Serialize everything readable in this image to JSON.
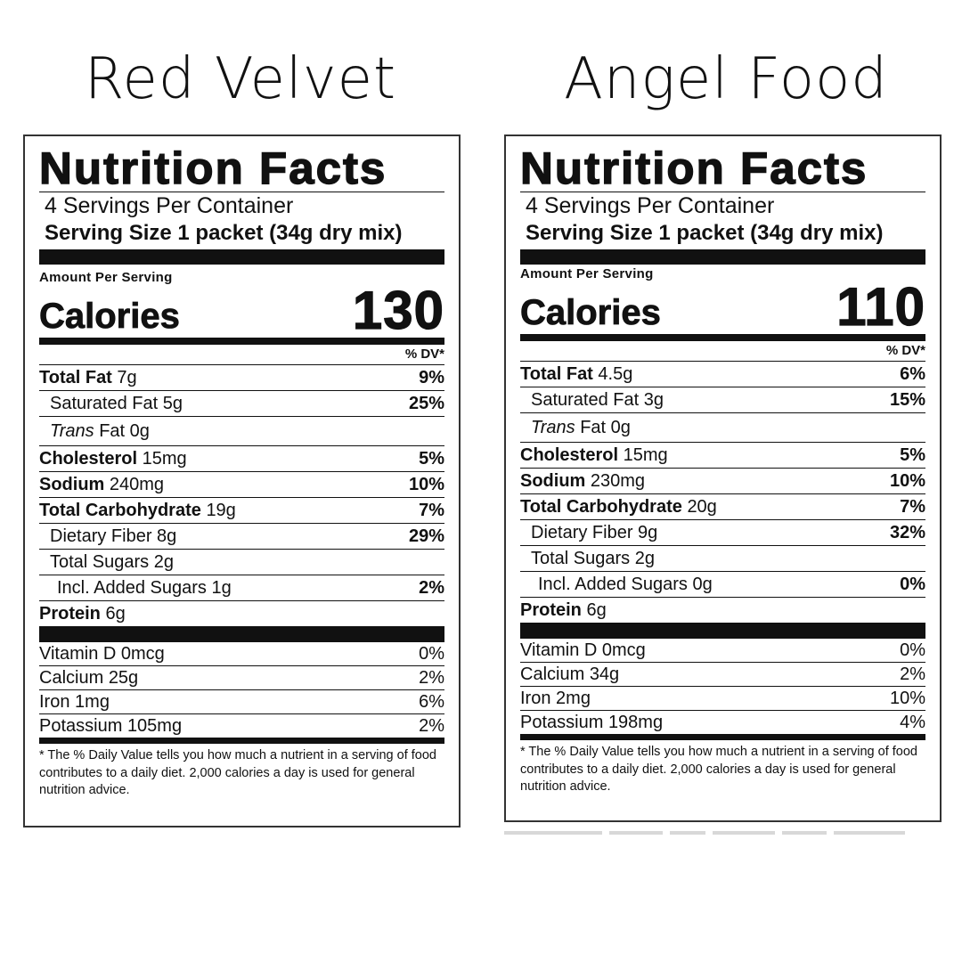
{
  "titles": {
    "left": "Red Velvet",
    "right": "Angel Food"
  },
  "labels": {
    "nf_title": "Nutrition Facts",
    "amount_per_serving": "Amount Per Serving",
    "calories": "Calories",
    "dv": "% DV*",
    "total_fat": "Total Fat",
    "saturated_fat": "Saturated Fat",
    "trans": "Trans",
    "fat": "Fat",
    "cholesterol": "Cholesterol",
    "sodium": "Sodium",
    "total_carb": "Total Carbohydrate",
    "dietary_fiber": "Dietary Fiber",
    "total_sugars": "Total Sugars",
    "added_sugars": "Incl. Added Sugars",
    "protein": "Protein",
    "vitamin_d": "Vitamin D",
    "calcium": "Calcium",
    "iron": "Iron",
    "potassium": "Potassium",
    "footnote": "* The % Daily Value tells you how much a nutrient in a serving of food contributes to a daily diet. 2,000 calories a day is used for general nutrition advice."
  },
  "red_velvet": {
    "servings": "4 Servings Per Container",
    "serving_size": "Serving Size 1 packet (34g dry mix)",
    "calories": "130",
    "total_fat": {
      "amount": "7g",
      "dv": "9%"
    },
    "saturated_fat": {
      "amount": "5g",
      "dv": "25%"
    },
    "trans_fat": {
      "amount": "0g"
    },
    "cholesterol": {
      "amount": "15mg",
      "dv": "5%"
    },
    "sodium": {
      "amount": "240mg",
      "dv": "10%"
    },
    "total_carb": {
      "amount": "19g",
      "dv": "7%"
    },
    "dietary_fiber": {
      "amount": "8g",
      "dv": "29%"
    },
    "total_sugars": {
      "amount": "2g"
    },
    "added_sugars": {
      "amount": "1g",
      "dv": "2%"
    },
    "protein": {
      "amount": "6g"
    },
    "vitamin_d": {
      "amount": "0mcg",
      "dv": "0%"
    },
    "calcium": {
      "amount": "25g",
      "dv": "2%"
    },
    "iron": {
      "amount": "1mg",
      "dv": "6%"
    },
    "potassium": {
      "amount": "105mg",
      "dv": "2%"
    }
  },
  "angel_food": {
    "servings": "4 Servings Per Container",
    "serving_size": "Serving Size 1 packet (34g dry mix)",
    "calories": "110",
    "total_fat": {
      "amount": "4.5g",
      "dv": "6%"
    },
    "saturated_fat": {
      "amount": "3g",
      "dv": "15%"
    },
    "trans_fat": {
      "amount": "0g"
    },
    "cholesterol": {
      "amount": "15mg",
      "dv": "5%"
    },
    "sodium": {
      "amount": "230mg",
      "dv": "10%"
    },
    "total_carb": {
      "amount": "20g",
      "dv": "7%"
    },
    "dietary_fiber": {
      "amount": "9g",
      "dv": "32%"
    },
    "total_sugars": {
      "amount": "2g"
    },
    "added_sugars": {
      "amount": "0g",
      "dv": "0%"
    },
    "protein": {
      "amount": "6g"
    },
    "vitamin_d": {
      "amount": "0mcg",
      "dv": "0%"
    },
    "calcium": {
      "amount": "34g",
      "dv": "2%"
    },
    "iron": {
      "amount": "2mg",
      "dv": "10%"
    },
    "potassium": {
      "amount": "198mg",
      "dv": "4%"
    }
  }
}
